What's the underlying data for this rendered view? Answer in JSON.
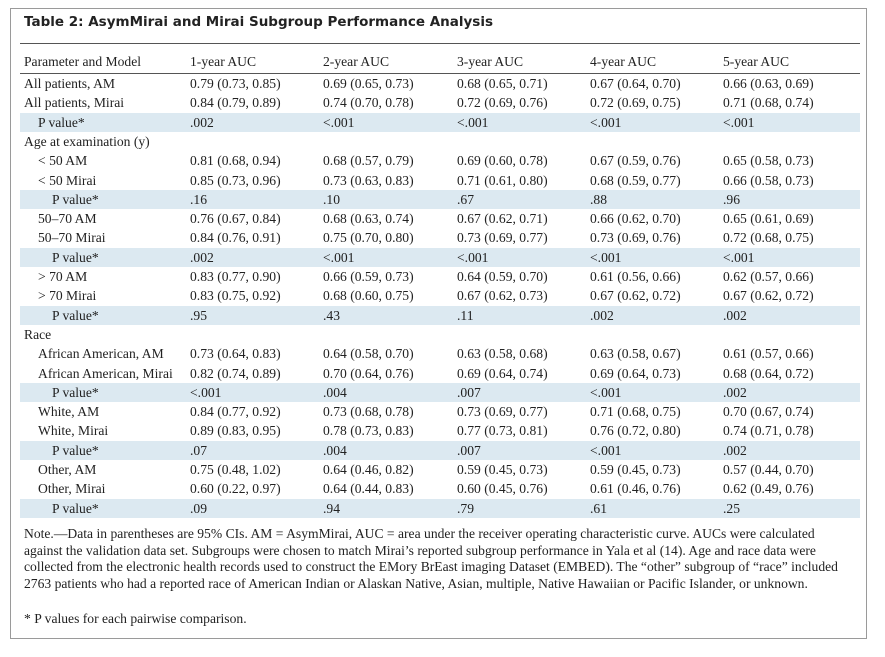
{
  "title": "Table 2: AsymMirai and Mirai Subgroup Performance Analysis",
  "table": {
    "columns": [
      "Parameter and Model",
      "1-year AUC",
      "2-year AUC",
      "3-year AUC",
      "4-year AUC",
      "5-year AUC"
    ],
    "rows": [
      [
        "All patients, AM",
        "0.79 (0.73, 0.85)",
        "0.69 (0.65, 0.73)",
        "0.68 (0.65, 0.71)",
        "0.67 (0.64, 0.70)",
        "0.66 (0.63, 0.69)"
      ],
      [
        "All patients, Mirai",
        "0.84 (0.79, 0.89)",
        "0.74 (0.70, 0.78)",
        "0.72 (0.69, 0.76)",
        "0.72 (0.69, 0.75)",
        "0.71 (0.68, 0.74)"
      ],
      [
        "P value*",
        ".002",
        "<.001",
        "<.001",
        "<.001",
        "<.001"
      ],
      [
        "Age at examination (y)"
      ],
      [
        "< 50 AM",
        "0.81 (0.68, 0.94)",
        "0.68 (0.57, 0.79)",
        "0.69 (0.60, 0.78)",
        "0.67 (0.59, 0.76)",
        "0.65 (0.58, 0.73)"
      ],
      [
        "< 50 Mirai",
        "0.85 (0.73, 0.96)",
        "0.73 (0.63, 0.83)",
        "0.71 (0.61, 0.80)",
        "0.68 (0.59, 0.77)",
        "0.66 (0.58, 0.73)"
      ],
      [
        "P value*",
        ".16",
        ".10",
        ".67",
        ".88",
        ".96"
      ],
      [
        "50–70 AM",
        "0.76 (0.67, 0.84)",
        "0.68 (0.63, 0.74)",
        "0.67 (0.62, 0.71)",
        "0.66 (0.62, 0.70)",
        "0.65 (0.61, 0.69)"
      ],
      [
        "50–70 Mirai",
        "0.84 (0.76, 0.91)",
        "0.75 (0.70, 0.80)",
        "0.73 (0.69, 0.77)",
        "0.73 (0.69, 0.76)",
        "0.72 (0.68, 0.75)"
      ],
      [
        "P value*",
        ".002",
        "<.001",
        "<.001",
        "<.001",
        "<.001"
      ],
      [
        "> 70 AM",
        "0.83 (0.77, 0.90)",
        "0.66 (0.59, 0.73)",
        "0.64 (0.59, 0.70)",
        "0.61 (0.56, 0.66)",
        "0.62 (0.57, 0.66)"
      ],
      [
        "> 70 Mirai",
        "0.83 (0.75, 0.92)",
        "0.68 (0.60, 0.75)",
        "0.67 (0.62, 0.73)",
        "0.67 (0.62, 0.72)",
        "0.67 (0.62, 0.72)"
      ],
      [
        "P value*",
        ".95",
        ".43",
        ".11",
        ".002",
        ".002"
      ],
      [
        "Race"
      ],
      [
        "African American, AM",
        "0.73 (0.64, 0.83)",
        "0.64 (0.58, 0.70)",
        "0.63 (0.58, 0.68)",
        "0.63 (0.58, 0.67)",
        "0.61 (0.57, 0.66)"
      ],
      [
        "African American, Mirai",
        "0.82 (0.74, 0.89)",
        "0.70 (0.64, 0.76)",
        "0.69 (0.64, 0.74)",
        "0.69 (0.64, 0.73)",
        "0.68 (0.64, 0.72)"
      ],
      [
        "P value*",
        "<.001",
        ".004",
        ".007",
        "<.001",
        ".002"
      ],
      [
        "White, AM",
        "0.84 (0.77, 0.92)",
        "0.73 (0.68, 0.78)",
        "0.73 (0.69, 0.77)",
        "0.71 (0.68, 0.75)",
        "0.70 (0.67, 0.74)"
      ],
      [
        "White, Mirai",
        "0.89 (0.83, 0.95)",
        "0.78 (0.73, 0.83)",
        "0.77 (0.73, 0.81)",
        "0.76 (0.72, 0.80)",
        "0.74 (0.71, 0.78)"
      ],
      [
        "P value*",
        ".07",
        ".004",
        ".007",
        "<.001",
        ".002"
      ],
      [
        "Other, AM",
        "0.75 (0.48, 1.02)",
        "0.64 (0.46, 0.82)",
        "0.59 (0.45, 0.73)",
        "0.59 (0.45, 0.73)",
        "0.57 (0.44, 0.70)"
      ],
      [
        "Other, Mirai",
        "0.60 (0.22, 0.97)",
        "0.64 (0.44, 0.83)",
        "0.60 (0.45, 0.76)",
        "0.61 (0.46, 0.76)",
        "0.62 (0.49, 0.76)"
      ],
      [
        "P value*",
        ".09",
        ".94",
        ".79",
        ".61",
        ".25"
      ]
    ]
  },
  "note": "Note.—Data in parentheses are 95% CIs. AM = AsymMirai, AUC = area under the receiver operating characteristic curve. AUCs were calculated against the validation data set. Subgroups were chosen to match Mirai’s reported subgroup performance in Yala et al (14). Age and race data were collected from the electronic health records used to construct the EMory BrEast imaging Dataset (EMBED). The “other” subgroup of “race” included 2763 patients who had a reported race of American Indian or Alaskan Native, Asian, multiple, Native Hawaiian or Pacific Islander, or unknown.",
  "footnote": "* P values for each pairwise comparison."
}
